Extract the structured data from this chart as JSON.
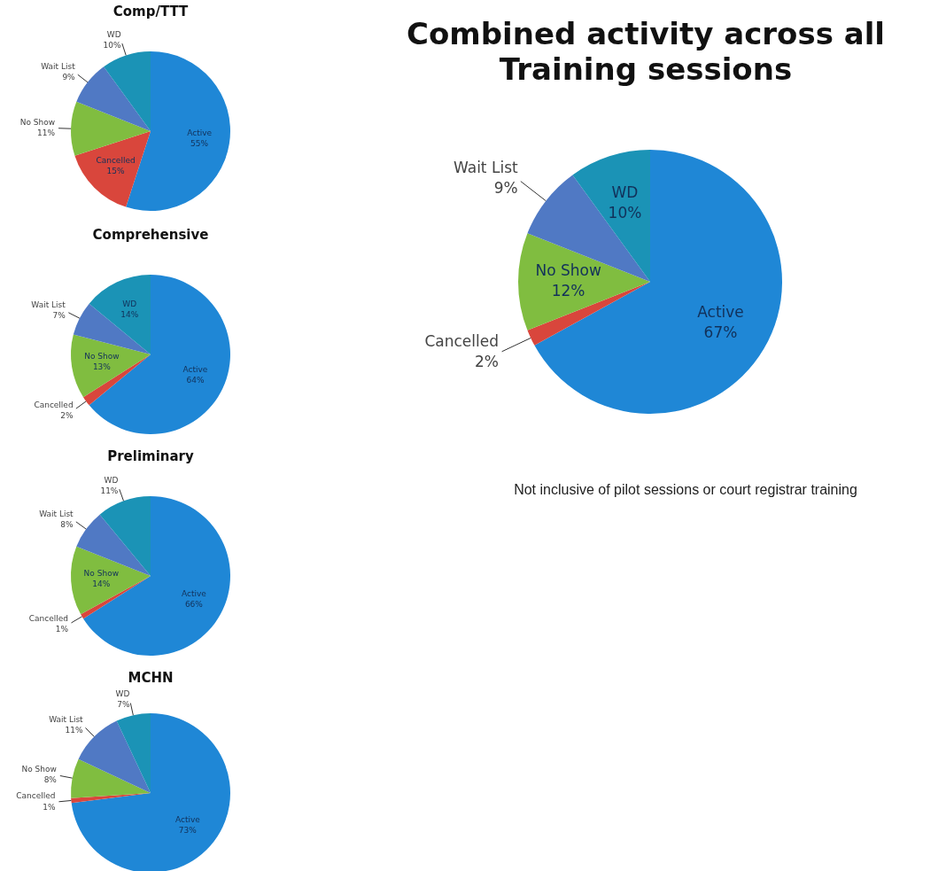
{
  "chart_data": [
    {
      "type": "pie",
      "title": "Comp/TTT",
      "categories": [
        "Active",
        "Cancelled",
        "No Show",
        "Wait List",
        "WD"
      ],
      "values": [
        55,
        15,
        11,
        9,
        10
      ],
      "value_labels": [
        "55%",
        "15%",
        "11%",
        "9%",
        "10%"
      ],
      "colors": [
        "#1f87d6",
        "#d9463c",
        "#80bd40",
        "#5079c4",
        "#1b93b6"
      ]
    },
    {
      "type": "pie",
      "title": "Combined activity across all Training sessions",
      "categories": [
        "Active",
        "Cancelled",
        "No Show",
        "Wait List",
        "WD"
      ],
      "values": [
        67,
        2,
        12,
        9,
        10
      ],
      "value_labels": [
        "67%",
        "2%",
        "12%",
        "9%",
        "10%"
      ],
      "colors": [
        "#1f87d6",
        "#d9463c",
        "#80bd40",
        "#5079c4",
        "#1b93b6"
      ],
      "annotations": [
        "Not inclusive of pilot sessions or court registrar training"
      ]
    },
    {
      "type": "pie",
      "title": "Comprehensive",
      "categories": [
        "Active",
        "Cancelled",
        "No Show",
        "Wait List",
        "WD"
      ],
      "values": [
        64,
        2,
        13,
        7,
        14
      ],
      "value_labels": [
        "64%",
        "2%",
        "13%",
        "7%",
        "14%"
      ],
      "colors": [
        "#1f87d6",
        "#d9463c",
        "#80bd40",
        "#5079c4",
        "#1b93b6"
      ]
    },
    {
      "type": "pie",
      "title": "Preliminary",
      "categories": [
        "Active",
        "Cancelled",
        "No Show",
        "Wait List",
        "WD"
      ],
      "values": [
        66,
        1,
        14,
        8,
        11
      ],
      "value_labels": [
        "66%",
        "1%",
        "14%",
        "8%",
        "11%"
      ],
      "colors": [
        "#1f87d6",
        "#d9463c",
        "#80bd40",
        "#5079c4",
        "#1b93b6"
      ]
    },
    {
      "type": "pie",
      "title": "MCHN",
      "categories": [
        "Active",
        "Cancelled",
        "No Show",
        "Wait List",
        "WD"
      ],
      "values": [
        73,
        1,
        8,
        11,
        7
      ],
      "value_labels": [
        "73%",
        "1%",
        "8%",
        "11%",
        "7%"
      ],
      "colors": [
        "#1f87d6",
        "#d9463c",
        "#80bd40",
        "#5079c4",
        "#1b93b6"
      ]
    }
  ]
}
